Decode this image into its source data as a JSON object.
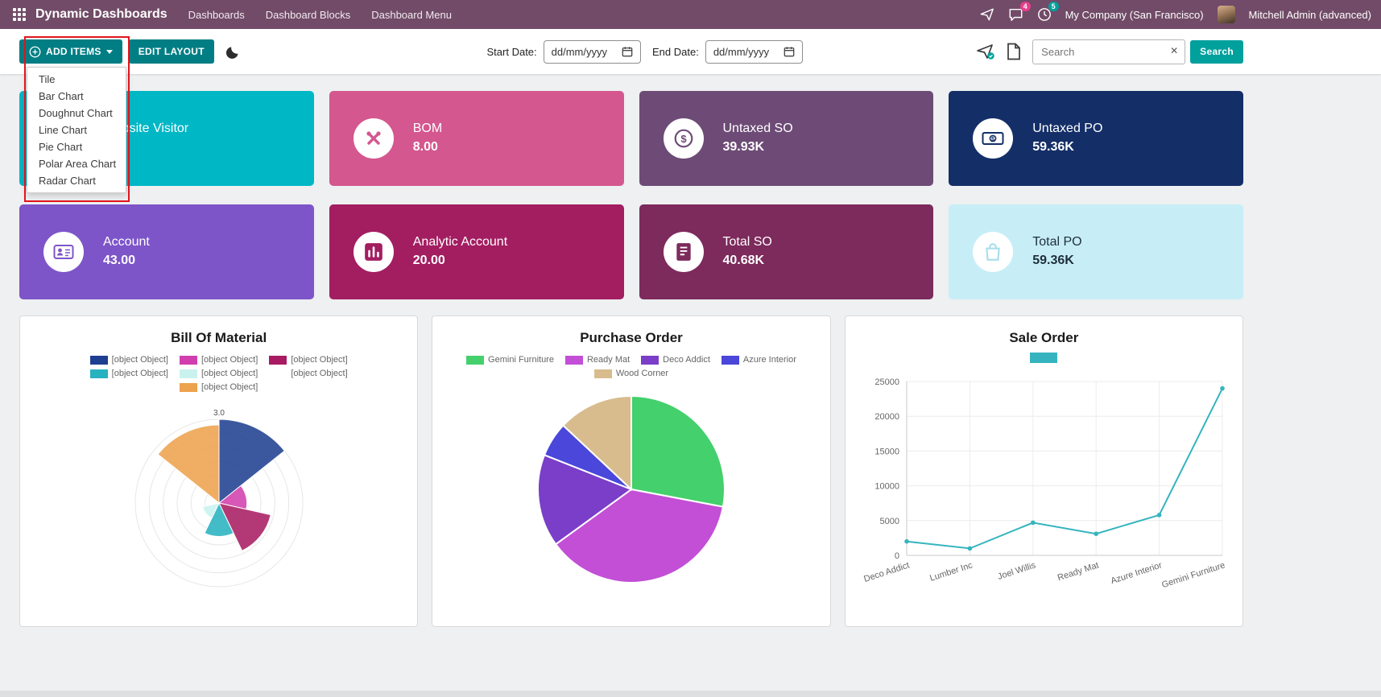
{
  "navbar": {
    "brand": "Dynamic Dashboards",
    "menu": [
      "Dashboards",
      "Dashboard Blocks",
      "Dashboard Menu"
    ],
    "systray": {
      "messages_count": "4",
      "activities_count": "5",
      "company": "My Company (San Francisco)",
      "user": "Mitchell Admin (advanced)"
    },
    "bg_color": "#714B67"
  },
  "toolbar": {
    "add_items_label": "ADD ITEMS",
    "edit_layout_label": "EDIT LAYOUT",
    "dropdown_items": [
      "Tile",
      "Bar Chart",
      "Doughnut Chart",
      "Line Chart",
      "Pie Chart",
      "Polar Area Chart",
      "Radar Chart"
    ],
    "start_date_label": "Start Date:",
    "end_date_label": "End Date:",
    "date_placeholder": "dd/mm/yyyy",
    "search_placeholder": "Search",
    "search_button_label": "Search",
    "button_color": "#017e84",
    "highlight_color": "#e0151b"
  },
  "tiles": [
    {
      "title": "Website Visitor",
      "value": "",
      "bg": "#00b7c6",
      "fg": "#ffffff",
      "icon": "eye"
    },
    {
      "title": "BOM",
      "value": "8.00",
      "bg": "#d4578f",
      "fg": "#ffffff",
      "icon": "tools"
    },
    {
      "title": "Untaxed SO",
      "value": "39.93K",
      "bg": "#6d4b76",
      "fg": "#ffffff",
      "icon": "dollar-circle"
    },
    {
      "title": "Untaxed PO",
      "value": "59.36K",
      "bg": "#142f68",
      "fg": "#ffffff",
      "icon": "banknote"
    },
    {
      "title": "Account",
      "value": "43.00",
      "bg": "#7d55c9",
      "fg": "#ffffff",
      "icon": "id-card"
    },
    {
      "title": "Analytic Account",
      "value": "20.00",
      "bg": "#a31d61",
      "fg": "#ffffff",
      "icon": "bar-chart"
    },
    {
      "title": "Total SO",
      "value": "40.68K",
      "bg": "#7d2a5c",
      "fg": "#ffffff",
      "icon": "receipt"
    },
    {
      "title": "Total PO",
      "value": "59.36K",
      "bg": "#c7eef7",
      "fg": "#1f2f3a",
      "icon": "shopping-bag",
      "icon_color": "#a9dfeb"
    }
  ],
  "chart_data": [
    {
      "type": "polar_area",
      "title": "Bill Of Material",
      "labels": [
        "[object Object]",
        "[object Object]",
        "[object Object]",
        "[object Object]",
        "[object Object]",
        "[object Object]",
        "[object Object]"
      ],
      "values": [
        3.0,
        1.0,
        1.9,
        1.2,
        0.6,
        0,
        2.8
      ],
      "colors": [
        "#1e3f91",
        "#d13fae",
        "#a81b62",
        "#27b2c0",
        "#c9f2ef",
        "#ffffff",
        "#eda24d"
      ],
      "rmax": 3.0,
      "tick_label": "3.0",
      "legend_position": "top",
      "grid": true
    },
    {
      "type": "pie",
      "title": "Purchase Order",
      "labels": [
        "Gemini Furniture",
        "Ready Mat",
        "Deco Addict",
        "Azure Interior",
        "Wood Corner"
      ],
      "values": [
        28,
        37,
        16,
        6,
        13
      ],
      "colors": [
        "#44d06c",
        "#c24fd6",
        "#7a3ec8",
        "#4a47da",
        "#d8bc8d"
      ],
      "legend_position": "top",
      "grid": false
    },
    {
      "type": "line",
      "title": "Sale Order",
      "categories": [
        "Deco Addict",
        "Lumber Inc",
        "Joel Willis",
        "Ready Mat",
        "Azure Interior",
        "Gemini Furniture"
      ],
      "values": [
        2000,
        1000,
        4700,
        3100,
        5800,
        24000
      ],
      "color": "#35b4bf",
      "xlabel": "",
      "ylabel": "",
      "ylim": [
        0,
        25000
      ],
      "yticks": [
        0,
        5000,
        10000,
        15000,
        20000,
        25000
      ],
      "grid": true,
      "legend_position": "top"
    }
  ]
}
